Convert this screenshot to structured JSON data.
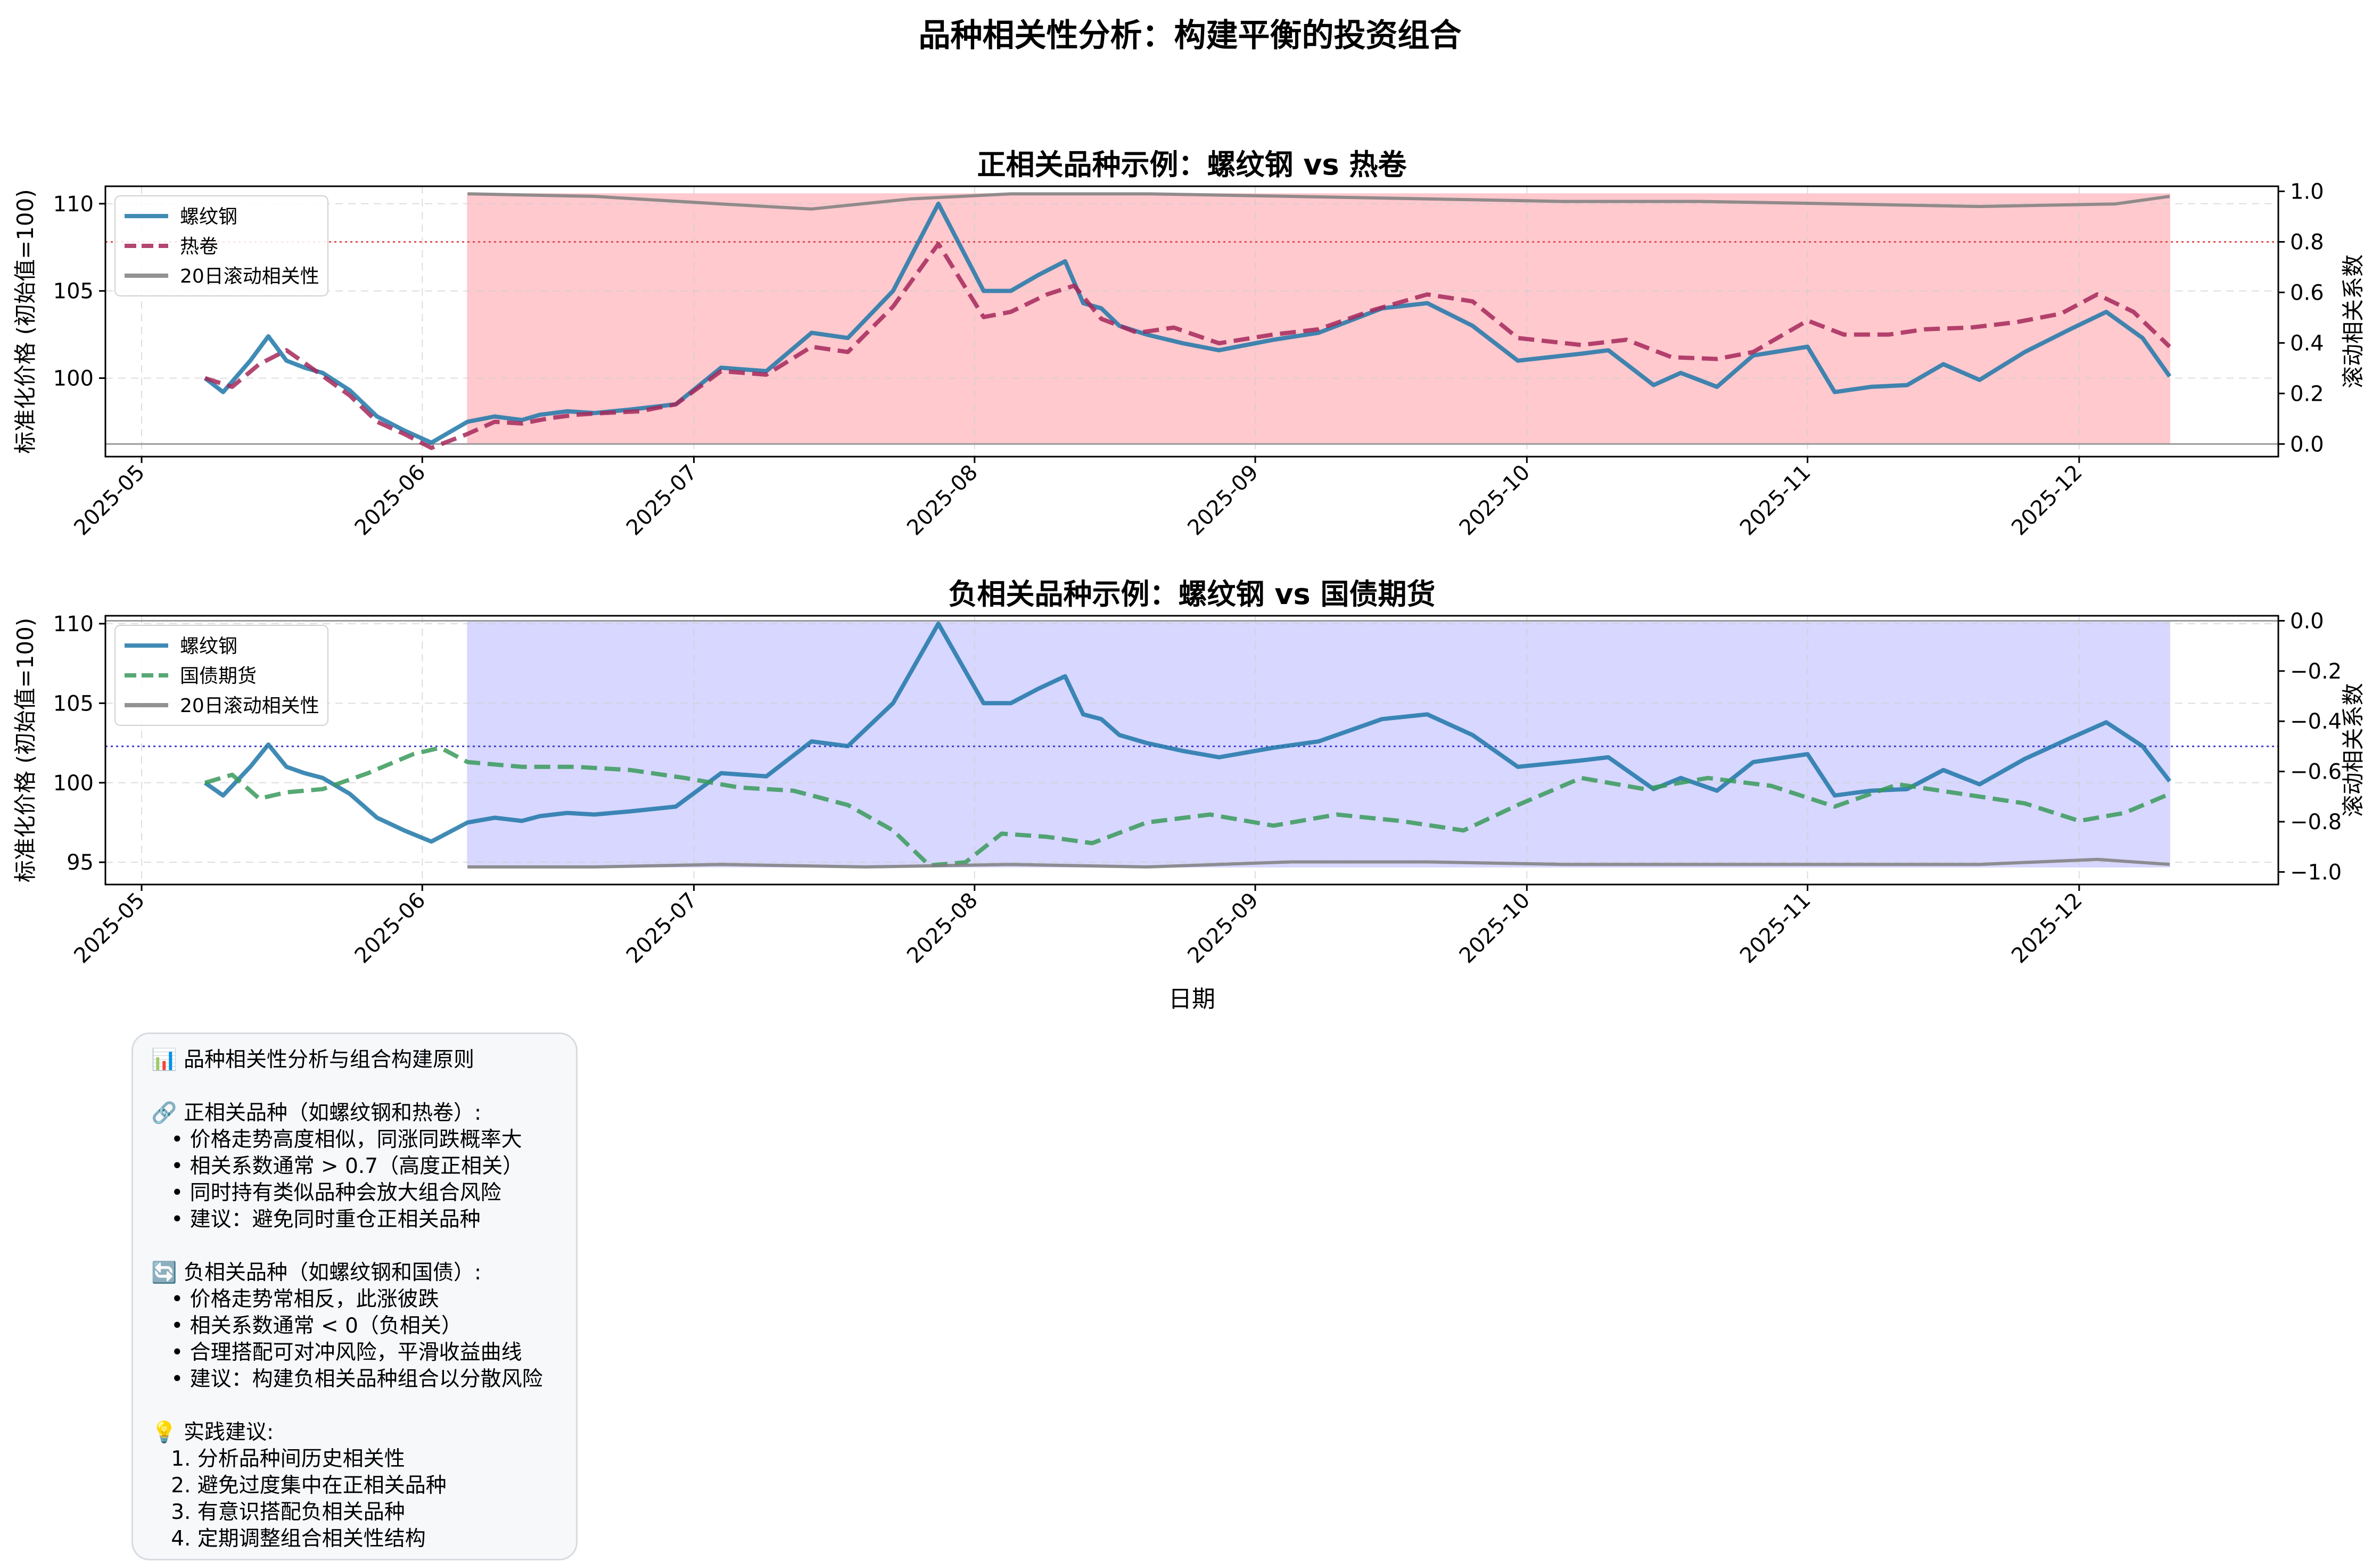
{
  "suptitle": "品种相关性分析：构建平衡的投资组合",
  "chart_data": [
    {
      "type": "line",
      "title": "正相关品种示例：螺纹钢 vs 热卷",
      "ylabel": "标准化价格 (初始值=100)",
      "ylabel_right": "滚动相关系数",
      "xlabel": "",
      "ylim": [
        95.5,
        111
      ],
      "y_ticks": [
        100,
        105,
        110
      ],
      "ylim_right": [
        -0.05,
        1.02
      ],
      "y_ticks_right": [
        "0.0",
        "0.2",
        "0.4",
        "0.6",
        "0.8",
        "1.0"
      ],
      "x_range": [
        "2025-04-27",
        "2025-12-23"
      ],
      "x_ticks": [
        "2025-05",
        "2025-06",
        "2025-07",
        "2025-08",
        "2025-09",
        "2025-10",
        "2025-11",
        "2025-12"
      ],
      "grid": true,
      "legend": "upper-left",
      "reference_line": 0.8,
      "zero_line": 0.0,
      "shade": {
        "from": 0,
        "to": 0.99,
        "color": "#ffc9ce"
      },
      "series": [
        {
          "name": "螺纹钢",
          "axis": "left",
          "color": "#1f77a8",
          "style": "solid",
          "x": [
            "2025-05-08",
            "2025-05-10",
            "2025-05-13",
            "2025-05-15",
            "2025-05-17",
            "2025-05-19",
            "2025-05-21",
            "2025-05-24",
            "2025-05-27",
            "2025-05-30",
            "2025-06-02",
            "2025-06-06",
            "2025-06-09",
            "2025-06-12",
            "2025-06-14",
            "2025-06-17",
            "2025-06-20",
            "2025-06-24",
            "2025-06-29",
            "2025-07-04",
            "2025-07-09",
            "2025-07-14",
            "2025-07-18",
            "2025-07-23",
            "2025-07-28",
            "2025-08-02",
            "2025-08-05",
            "2025-08-08",
            "2025-08-11",
            "2025-08-13",
            "2025-08-15",
            "2025-08-17",
            "2025-08-20",
            "2025-08-24",
            "2025-08-28",
            "2025-09-03",
            "2025-09-08",
            "2025-09-15",
            "2025-09-20",
            "2025-09-25",
            "2025-09-30",
            "2025-10-07",
            "2025-10-10",
            "2025-10-15",
            "2025-10-18",
            "2025-10-22",
            "2025-10-26",
            "2025-11-01",
            "2025-11-04",
            "2025-11-08",
            "2025-11-12",
            "2025-11-16",
            "2025-11-20",
            "2025-11-25",
            "2025-11-30",
            "2025-12-04",
            "2025-12-08",
            "2025-12-11"
          ],
          "y": [
            100.0,
            99.2,
            101.0,
            102.4,
            101.0,
            100.6,
            100.3,
            99.3,
            97.8,
            97.0,
            96.3,
            97.5,
            97.8,
            97.6,
            97.9,
            98.1,
            98.0,
            98.2,
            98.5,
            100.6,
            100.4,
            102.6,
            102.3,
            105.0,
            110.0,
            105.0,
            105.0,
            105.9,
            106.7,
            104.3,
            104.0,
            103.0,
            102.5,
            102.0,
            101.6,
            102.2,
            102.6,
            104.0,
            104.3,
            103.0,
            101.0,
            101.4,
            101.6,
            99.6,
            100.3,
            99.5,
            101.3,
            101.8,
            99.2,
            99.5,
            99.6,
            100.8,
            99.9,
            101.5,
            102.8,
            103.8,
            102.3,
            100.1
          ]
        },
        {
          "name": "热卷",
          "axis": "left",
          "color": "#a6285a",
          "style": "dashed",
          "x": [
            "2025-05-08",
            "2025-05-11",
            "2025-05-14",
            "2025-05-17",
            "2025-05-20",
            "2025-05-24",
            "2025-05-27",
            "2025-05-30",
            "2025-06-02",
            "2025-06-06",
            "2025-06-09",
            "2025-06-12",
            "2025-06-15",
            "2025-06-18",
            "2025-06-21",
            "2025-06-25",
            "2025-06-29",
            "2025-07-04",
            "2025-07-09",
            "2025-07-14",
            "2025-07-18",
            "2025-07-23",
            "2025-07-28",
            "2025-08-02",
            "2025-08-05",
            "2025-08-09",
            "2025-08-12",
            "2025-08-15",
            "2025-08-19",
            "2025-08-23",
            "2025-08-28",
            "2025-09-03",
            "2025-09-08",
            "2025-09-14",
            "2025-09-20",
            "2025-09-25",
            "2025-09-30",
            "2025-10-07",
            "2025-10-12",
            "2025-10-17",
            "2025-10-22",
            "2025-10-26",
            "2025-11-01",
            "2025-11-05",
            "2025-11-10",
            "2025-11-14",
            "2025-11-19",
            "2025-11-24",
            "2025-11-29",
            "2025-12-03",
            "2025-12-07",
            "2025-12-11"
          ],
          "y": [
            100.0,
            99.5,
            100.8,
            101.6,
            100.5,
            99.0,
            97.5,
            96.8,
            96.0,
            96.8,
            97.5,
            97.4,
            97.7,
            97.9,
            98.0,
            98.1,
            98.5,
            100.4,
            100.2,
            101.8,
            101.5,
            104.1,
            107.7,
            103.5,
            103.8,
            104.8,
            105.3,
            103.4,
            102.6,
            102.9,
            102.0,
            102.5,
            102.8,
            103.9,
            104.8,
            104.4,
            102.3,
            101.9,
            102.2,
            101.2,
            101.1,
            101.5,
            103.3,
            102.5,
            102.5,
            102.8,
            102.9,
            103.2,
            103.7,
            104.8,
            103.8,
            101.8
          ]
        },
        {
          "name": "20日滚动相关性",
          "axis": "right",
          "color": "#7f7f7f",
          "style": "solid",
          "x": [
            "2025-06-06",
            "2025-06-20",
            "2025-07-04",
            "2025-07-14",
            "2025-07-25",
            "2025-08-05",
            "2025-08-20",
            "2025-09-05",
            "2025-09-20",
            "2025-10-05",
            "2025-10-20",
            "2025-11-05",
            "2025-11-20",
            "2025-12-05",
            "2025-12-11"
          ],
          "y": [
            0.99,
            0.98,
            0.95,
            0.93,
            0.97,
            0.99,
            0.99,
            0.98,
            0.97,
            0.96,
            0.96,
            0.95,
            0.94,
            0.95,
            0.98
          ]
        }
      ]
    },
    {
      "type": "line",
      "title": "负相关品种示例：螺纹钢 vs 国债期货",
      "ylabel": "标准化价格 (初始值=100)",
      "ylabel_right": "滚动相关系数",
      "xlabel": "日期",
      "ylim": [
        93.6,
        110.5
      ],
      "y_ticks": [
        95,
        100,
        105,
        110
      ],
      "ylim_right": [
        -1.05,
        0.02
      ],
      "y_ticks_right": [
        "0.0",
        "−0.2",
        "−0.4",
        "−0.6",
        "−0.8",
        "−1.0"
      ],
      "x_range": [
        "2025-04-27",
        "2025-12-23"
      ],
      "x_ticks": [
        "2025-05",
        "2025-06",
        "2025-07",
        "2025-08",
        "2025-09",
        "2025-10",
        "2025-11",
        "2025-12"
      ],
      "grid": true,
      "legend": "upper-left",
      "reference_line": -0.5,
      "zero_line": 0.0,
      "shade": {
        "from": -0.98,
        "to": 0,
        "color": "#d7d7ff"
      },
      "series": [
        {
          "name": "螺纹钢",
          "axis": "left",
          "color": "#1f77a8",
          "style": "solid",
          "x": [
            "2025-05-08",
            "2025-05-10",
            "2025-05-13",
            "2025-05-15",
            "2025-05-17",
            "2025-05-19",
            "2025-05-21",
            "2025-05-24",
            "2025-05-27",
            "2025-05-30",
            "2025-06-02",
            "2025-06-06",
            "2025-06-09",
            "2025-06-12",
            "2025-06-14",
            "2025-06-17",
            "2025-06-20",
            "2025-06-24",
            "2025-06-29",
            "2025-07-04",
            "2025-07-09",
            "2025-07-14",
            "2025-07-18",
            "2025-07-23",
            "2025-07-28",
            "2025-08-02",
            "2025-08-05",
            "2025-08-08",
            "2025-08-11",
            "2025-08-13",
            "2025-08-15",
            "2025-08-17",
            "2025-08-20",
            "2025-08-24",
            "2025-08-28",
            "2025-09-03",
            "2025-09-08",
            "2025-09-15",
            "2025-09-20",
            "2025-09-25",
            "2025-09-30",
            "2025-10-07",
            "2025-10-10",
            "2025-10-15",
            "2025-10-18",
            "2025-10-22",
            "2025-10-26",
            "2025-11-01",
            "2025-11-04",
            "2025-11-08",
            "2025-11-12",
            "2025-11-16",
            "2025-11-20",
            "2025-11-25",
            "2025-11-30",
            "2025-12-04",
            "2025-12-08",
            "2025-12-11"
          ],
          "y": [
            100.0,
            99.2,
            101.0,
            102.4,
            101.0,
            100.6,
            100.3,
            99.3,
            97.8,
            97.0,
            96.3,
            97.5,
            97.8,
            97.6,
            97.9,
            98.1,
            98.0,
            98.2,
            98.5,
            100.6,
            100.4,
            102.6,
            102.3,
            105.0,
            110.0,
            105.0,
            105.0,
            105.9,
            106.7,
            104.3,
            104.0,
            103.0,
            102.5,
            102.0,
            101.6,
            102.2,
            102.6,
            104.0,
            104.3,
            103.0,
            101.0,
            101.4,
            101.6,
            99.6,
            100.3,
            99.5,
            101.3,
            101.8,
            99.2,
            99.5,
            99.6,
            100.8,
            99.9,
            101.5,
            102.8,
            103.8,
            102.3,
            100.1
          ]
        },
        {
          "name": "国债期货",
          "axis": "left",
          "color": "#3a9a5a",
          "style": "dashed",
          "x": [
            "2025-05-08",
            "2025-05-11",
            "2025-05-14",
            "2025-05-17",
            "2025-05-21",
            "2025-05-26",
            "2025-05-31",
            "2025-06-03",
            "2025-06-06",
            "2025-06-12",
            "2025-06-18",
            "2025-06-24",
            "2025-06-30",
            "2025-07-06",
            "2025-07-12",
            "2025-07-18",
            "2025-07-23",
            "2025-07-27",
            "2025-07-31",
            "2025-08-04",
            "2025-08-09",
            "2025-08-14",
            "2025-08-20",
            "2025-08-27",
            "2025-09-03",
            "2025-09-10",
            "2025-09-17",
            "2025-09-24",
            "2025-09-30",
            "2025-10-07",
            "2025-10-14",
            "2025-10-21",
            "2025-10-28",
            "2025-11-04",
            "2025-11-11",
            "2025-11-18",
            "2025-11-25",
            "2025-12-01",
            "2025-12-06",
            "2025-12-11"
          ],
          "y": [
            100.0,
            100.5,
            99.0,
            99.4,
            99.6,
            100.6,
            101.8,
            102.2,
            101.3,
            101.0,
            101.0,
            100.8,
            100.3,
            99.7,
            99.5,
            98.6,
            97.0,
            94.8,
            95.0,
            96.8,
            96.6,
            96.2,
            97.5,
            98.0,
            97.3,
            98.0,
            97.6,
            97.0,
            98.6,
            100.3,
            99.6,
            100.3,
            99.8,
            98.5,
            99.9,
            99.3,
            98.7,
            97.6,
            98.1,
            99.3
          ]
        },
        {
          "name": "20日滚动相关性",
          "axis": "right",
          "color": "#7f7f7f",
          "style": "solid",
          "x": [
            "2025-06-06",
            "2025-06-20",
            "2025-07-04",
            "2025-07-20",
            "2025-08-05",
            "2025-08-20",
            "2025-09-05",
            "2025-09-20",
            "2025-10-05",
            "2025-10-20",
            "2025-11-05",
            "2025-11-20",
            "2025-12-03",
            "2025-12-11"
          ],
          "y": [
            -0.98,
            -0.98,
            -0.97,
            -0.98,
            -0.97,
            -0.98,
            -0.96,
            -0.96,
            -0.97,
            -0.97,
            -0.97,
            -0.97,
            -0.95,
            -0.97
          ]
        }
      ]
    }
  ],
  "notes": [
    "📊 品种相关性分析与组合构建原则",
    "",
    "🔗 正相关品种（如螺纹钢和热卷）:",
    "   • 价格走势高度相似，同涨同跌概率大",
    "   • 相关系数通常 > 0.7（高度正相关）",
    "   • 同时持有类似品种会放大组合风险",
    "   • 建议：避免同时重仓正相关品种",
    "",
    "🔄 负相关品种（如螺纹钢和国债）:",
    "   • 价格走势常相反，此涨彼跌",
    "   • 相关系数通常 < 0（负相关）",
    "   • 合理搭配可对冲风险，平滑收益曲线",
    "   • 建议：构建负相关品种组合以分散风险",
    "",
    "💡 实践建议:",
    "   1. 分析品种间历史相关性",
    "   2. 避免过度集中在正相关品种",
    "   3. 有意识搭配负相关品种",
    "   4. 定期调整组合相关性结构"
  ]
}
